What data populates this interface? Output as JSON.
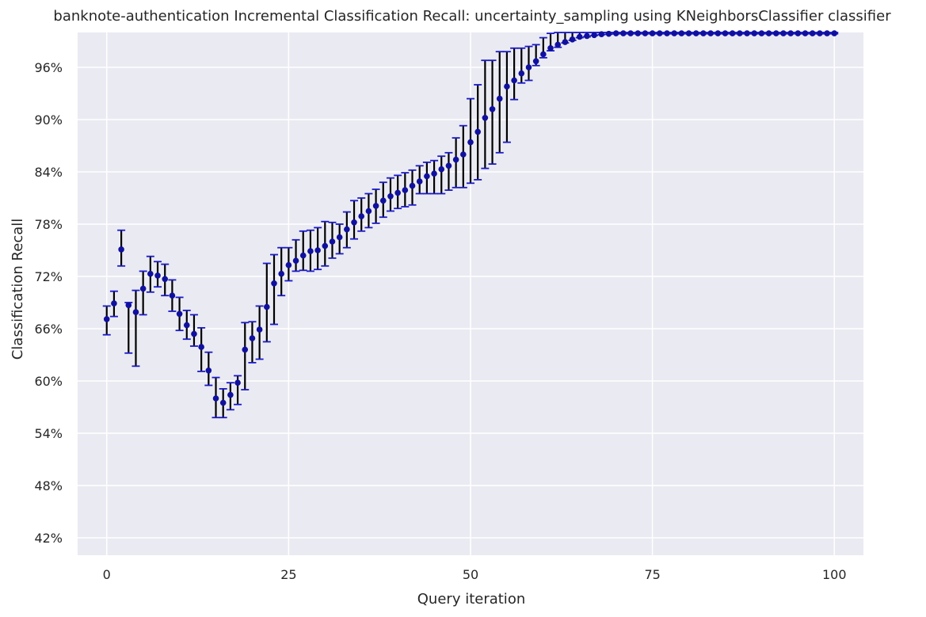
{
  "chart_data": {
    "type": "scatter",
    "title": "banknote-authentication Incremental Classification Recall: uncertainty_sampling using KNeighborsClassifier classifier",
    "xlabel": "Query iteration",
    "ylabel": "Classification Recall",
    "xlim": [
      -4,
      104
    ],
    "ylim": [
      40,
      100
    ],
    "xticks": [
      0,
      25,
      50,
      75,
      100
    ],
    "xtick_labels": [
      "0",
      "25",
      "50",
      "75",
      "100"
    ],
    "yticks": [
      42,
      48,
      54,
      60,
      66,
      72,
      78,
      84,
      90,
      96
    ],
    "ytick_labels": [
      "42%",
      "48%",
      "54%",
      "60%",
      "66%",
      "72%",
      "78%",
      "84%",
      "90%",
      "96%"
    ],
    "grid": true,
    "legend": "none",
    "colors": {
      "background": "#eaeaf2",
      "grid": "#ffffff",
      "marker": "#1010a0",
      "errorbar": "#000000",
      "cap": "#1a1acc"
    },
    "series": [
      {
        "x": [
          0,
          1,
          2,
          3,
          4,
          5,
          6,
          7,
          8,
          9,
          10,
          11,
          12,
          13,
          14,
          15,
          16,
          17,
          18,
          19,
          20,
          21,
          22,
          23,
          24,
          25,
          26,
          27,
          28,
          29,
          30,
          31,
          32,
          33,
          34,
          35,
          36,
          37,
          38,
          39,
          40,
          41,
          42,
          43,
          44,
          45,
          46,
          47,
          48,
          49,
          50,
          51,
          52,
          53,
          54,
          55,
          56,
          57,
          58,
          59,
          60,
          61,
          62,
          63,
          64,
          65,
          66,
          67,
          68,
          69,
          70,
          71,
          72,
          73,
          74,
          75,
          76,
          77,
          78,
          79,
          80,
          81,
          82,
          83,
          84,
          85,
          86,
          87,
          88,
          89,
          90,
          91,
          92,
          93,
          94,
          95,
          96,
          97,
          98,
          99,
          100
        ],
        "y": [
          67.1,
          68.9,
          75.1,
          68.7,
          67.9,
          70.6,
          72.3,
          72.1,
          71.7,
          69.8,
          67.7,
          66.4,
          65.4,
          63.9,
          61.2,
          58.0,
          57.5,
          58.4,
          59.8,
          63.6,
          64.9,
          65.9,
          68.5,
          71.2,
          72.3,
          73.3,
          73.8,
          74.4,
          74.9,
          75.0,
          75.5,
          76.0,
          76.5,
          77.4,
          78.2,
          78.9,
          79.5,
          80.1,
          80.7,
          81.2,
          81.6,
          81.9,
          82.4,
          82.9,
          83.5,
          83.8,
          84.3,
          84.7,
          85.4,
          86.0,
          87.4,
          88.6,
          90.2,
          91.2,
          92.4,
          93.8,
          94.5,
          95.3,
          96.0,
          96.7,
          97.5,
          98.2,
          98.6,
          98.9,
          99.2,
          99.5,
          99.6,
          99.7,
          99.8,
          99.85,
          99.9,
          99.9,
          99.9,
          99.9,
          99.9,
          99.9,
          99.9,
          99.9,
          99.9,
          99.9,
          99.9,
          99.9,
          99.9,
          99.9,
          99.9,
          99.9,
          99.9,
          99.9,
          99.9,
          99.9,
          99.9,
          99.9,
          99.9,
          99.9,
          99.9,
          99.9,
          99.9,
          99.9,
          99.9,
          99.9,
          99.9
        ],
        "yerr_low": [
          65.3,
          67.4,
          73.2,
          63.2,
          61.7,
          67.6,
          70.2,
          70.8,
          69.8,
          68.0,
          65.8,
          64.8,
          64.0,
          61.1,
          59.5,
          55.8,
          55.8,
          56.7,
          57.3,
          59.0,
          62.1,
          62.5,
          64.5,
          66.5,
          69.8,
          71.5,
          72.6,
          72.7,
          72.6,
          72.8,
          73.2,
          74.1,
          74.6,
          75.3,
          76.3,
          77.2,
          77.6,
          78.1,
          78.8,
          79.5,
          79.8,
          80.0,
          80.2,
          81.5,
          81.5,
          81.5,
          81.5,
          81.9,
          82.2,
          82.2,
          82.7,
          83.1,
          84.4,
          84.9,
          86.2,
          87.4,
          92.3,
          94.2,
          94.5,
          96.2,
          97.1,
          97.9,
          98.3,
          98.8,
          99.1,
          99.4,
          99.5,
          99.65,
          99.75,
          99.8,
          99.85,
          99.85,
          99.85,
          99.85,
          99.85,
          99.85,
          99.85,
          99.85,
          99.85,
          99.85,
          99.85,
          99.85,
          99.85,
          99.85,
          99.85,
          99.85,
          99.85,
          99.85,
          99.85,
          99.85,
          99.85,
          99.85,
          99.85,
          99.85,
          99.85,
          99.85,
          99.85,
          99.85,
          99.85,
          99.85,
          99.85
        ],
        "yerr_high": [
          68.6,
          70.3,
          77.3,
          69.0,
          70.4,
          72.6,
          74.3,
          73.7,
          73.4,
          71.6,
          69.6,
          68.1,
          67.6,
          66.1,
          63.3,
          60.4,
          59.1,
          59.8,
          60.6,
          66.7,
          66.8,
          68.6,
          73.5,
          74.5,
          75.3,
          75.3,
          76.2,
          77.2,
          77.3,
          77.6,
          78.3,
          78.2,
          78.0,
          79.4,
          80.7,
          81.0,
          81.5,
          82.0,
          82.8,
          83.3,
          83.6,
          83.9,
          84.2,
          84.7,
          85.1,
          85.3,
          85.8,
          86.2,
          87.9,
          89.3,
          92.4,
          94.0,
          96.8,
          96.8,
          97.8,
          97.8,
          98.2,
          98.2,
          98.4,
          98.6,
          99.4,
          99.9,
          100.0,
          100.0,
          100.0,
          100.0,
          100.0,
          100.0,
          100.0,
          100.0,
          100.0,
          100.0,
          100.0,
          100.0,
          100.0,
          100.0,
          100.0,
          100.0,
          100.0,
          100.0,
          100.0,
          100.0,
          100.0,
          100.0,
          100.0,
          100.0,
          100.0,
          100.0,
          100.0,
          100.0,
          100.0,
          100.0,
          100.0,
          100.0,
          100.0,
          100.0,
          100.0,
          100.0,
          100.0,
          100.0,
          100.0
        ]
      }
    ]
  }
}
